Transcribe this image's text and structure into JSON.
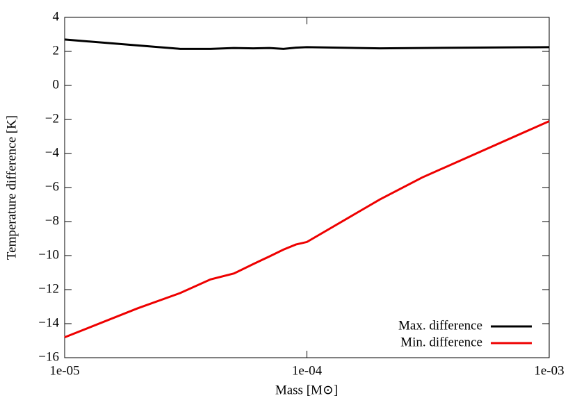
{
  "chart_data": {
    "type": "line",
    "xlabel": "Mass [M⊙]",
    "ylabel": "Temperature difference [K]",
    "log_x": true,
    "xlim": [
      1e-05,
      0.001
    ],
    "xticks": [
      {
        "value": 1e-05,
        "label": "1e-05"
      },
      {
        "value": 0.0001,
        "label": "1e-04"
      },
      {
        "value": 0.001,
        "label": "1e-03"
      }
    ],
    "ylim": [
      -16,
      4
    ],
    "yticks": [
      {
        "value": -16,
        "label": "−16"
      },
      {
        "value": -14,
        "label": "−14"
      },
      {
        "value": -12,
        "label": "−12"
      },
      {
        "value": -10,
        "label": "−10"
      },
      {
        "value": -8,
        "label": "−8"
      },
      {
        "value": -6,
        "label": "−6"
      },
      {
        "value": -4,
        "label": "−4"
      },
      {
        "value": -2,
        "label": "−2"
      },
      0,
      2,
      4
    ],
    "legend": "lower right",
    "series": [
      {
        "name": "Max. difference",
        "color": "#000000",
        "x": [
          1e-05,
          2e-05,
          3e-05,
          4e-05,
          5e-05,
          6e-05,
          7e-05,
          8e-05,
          9e-05,
          0.0001,
          0.0002,
          0.0003,
          0.001
        ],
        "values": [
          2.7,
          2.35,
          2.15,
          2.15,
          2.2,
          2.18,
          2.2,
          2.15,
          2.22,
          2.25,
          2.18,
          2.2,
          2.25
        ]
      },
      {
        "name": "Min. difference",
        "color": "#ee0000",
        "x": [
          1e-05,
          2e-05,
          3e-05,
          4e-05,
          5e-05,
          6e-05,
          7e-05,
          8e-05,
          9e-05,
          0.0001,
          0.0002,
          0.0003,
          0.001
        ],
        "values": [
          -14.8,
          -13.1,
          -12.2,
          -11.4,
          -11.05,
          -10.5,
          -10.05,
          -9.65,
          -9.35,
          -9.2,
          -6.7,
          -5.4,
          -2.1
        ]
      }
    ]
  }
}
